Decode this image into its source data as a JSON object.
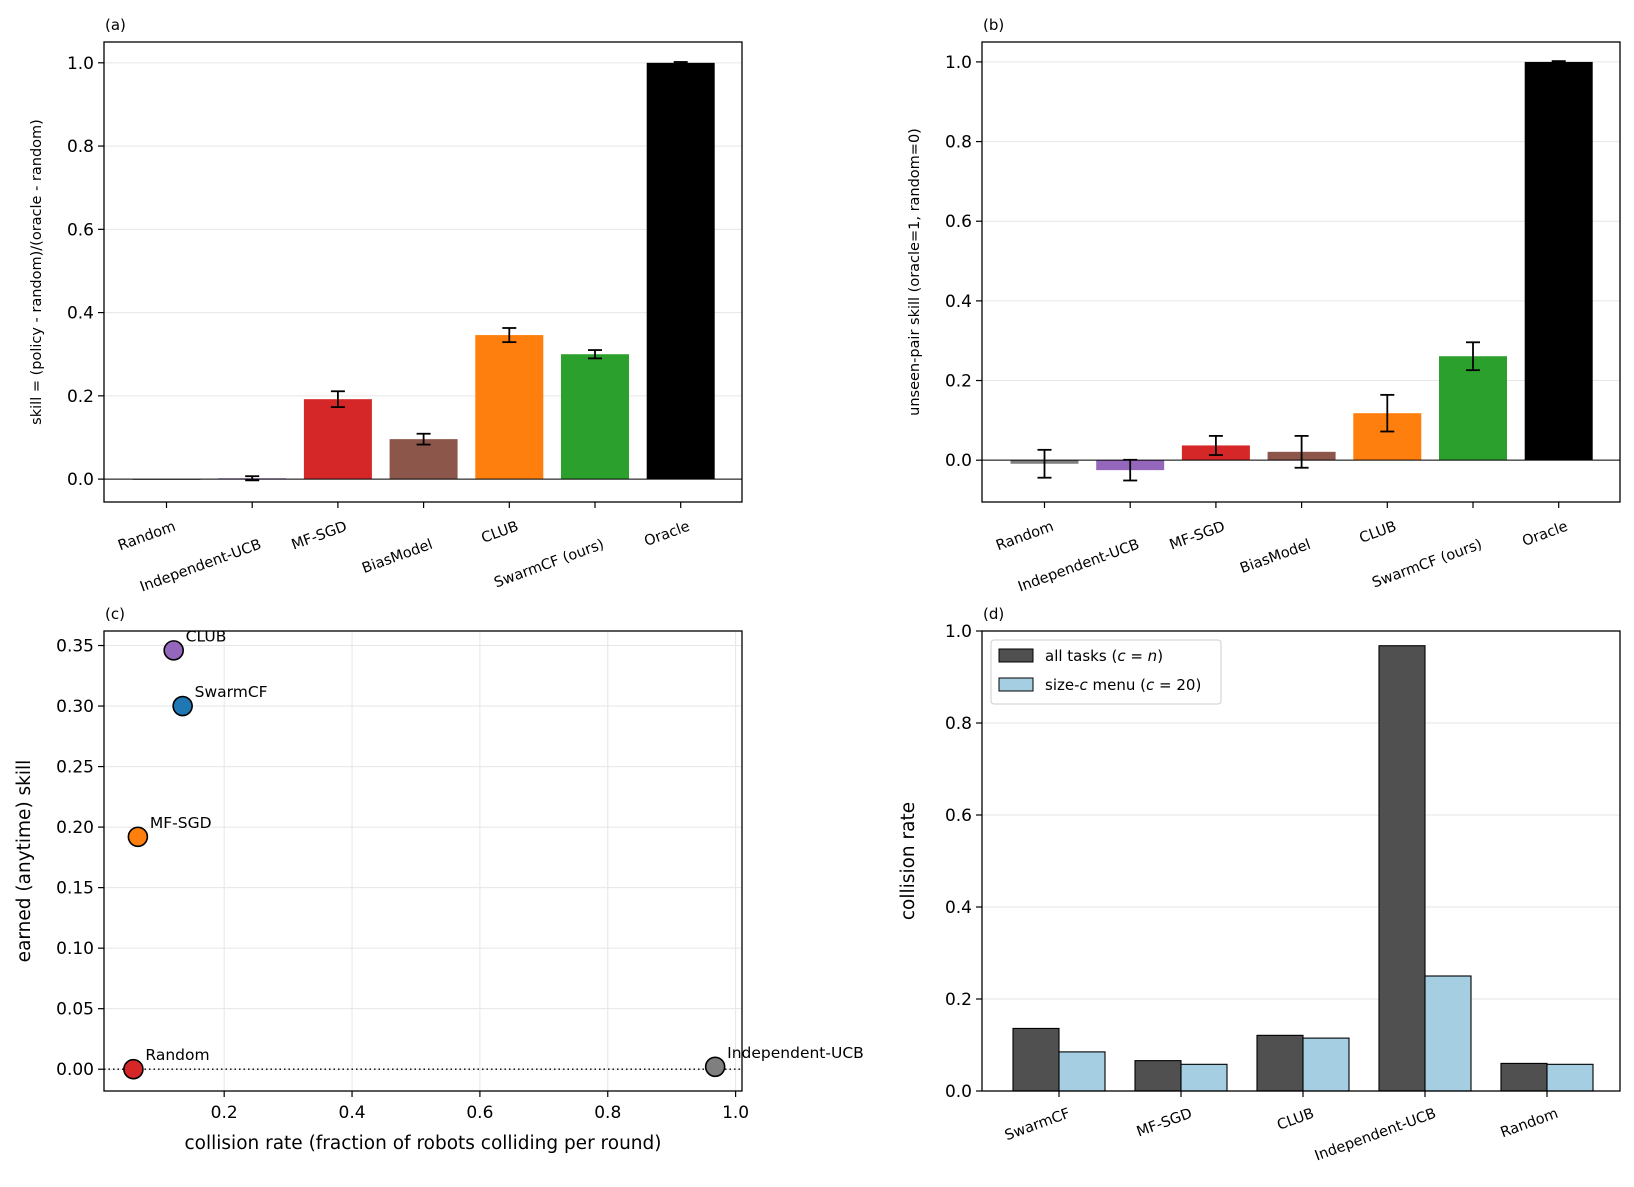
{
  "chart_data": [
    {
      "panel": "(a)",
      "type": "bar",
      "ylabel": "skill = (policy - random)/(oracle - random)",
      "ylim": [
        -0.055,
        1.05
      ],
      "yticks": [
        0.0,
        0.2,
        0.4,
        0.6,
        0.8,
        1.0
      ],
      "ytick_labels": [
        "0.0",
        "0.2",
        "0.4",
        "0.6",
        "0.8",
        "1.0"
      ],
      "grid": "y",
      "zero_line": true,
      "categories": [
        "Random",
        "Independent-UCB",
        "MF-SGD",
        "BiasModel",
        "CLUB",
        "SwarmCF (ours)",
        "Oracle"
      ],
      "values": [
        0.0,
        0.002,
        0.192,
        0.096,
        0.346,
        0.3,
        1.0
      ],
      "errors": [
        0.0,
        0.005,
        0.019,
        0.013,
        0.017,
        0.01,
        0.002
      ],
      "colors": [
        "#7f7f7f",
        "#9467bd",
        "#d62728",
        "#8c564b",
        "#ff7f0e",
        "#2ca02c",
        "#000000"
      ]
    },
    {
      "panel": "(b)",
      "type": "bar",
      "ylabel": "unseen-pair skill (oracle=1, random=0)",
      "ylim": [
        -0.105,
        1.05
      ],
      "yticks": [
        0.0,
        0.2,
        0.4,
        0.6,
        0.8,
        1.0
      ],
      "ytick_labels": [
        "0.0",
        "0.2",
        "0.4",
        "0.6",
        "0.8",
        "1.0"
      ],
      "grid": "y",
      "zero_line": true,
      "categories": [
        "Random",
        "Independent-UCB",
        "MF-SGD",
        "BiasModel",
        "CLUB",
        "SwarmCF (ours)",
        "Oracle"
      ],
      "values": [
        -0.009,
        -0.025,
        0.037,
        0.021,
        0.118,
        0.261,
        1.0
      ],
      "errors": [
        0.035,
        0.026,
        0.024,
        0.04,
        0.046,
        0.035,
        0.002
      ],
      "colors": [
        "#7f7f7f",
        "#9467bd",
        "#d62728",
        "#8c564b",
        "#ff7f0e",
        "#2ca02c",
        "#000000"
      ]
    },
    {
      "panel": "(c)",
      "type": "scatter",
      "xlabel": "collision rate (fraction of robots colliding per round)",
      "ylabel": "earned (anytime) skill",
      "xlim": [
        0.012,
        1.01
      ],
      "ylim": [
        -0.018,
        0.362
      ],
      "xticks": [
        0.2,
        0.4,
        0.6,
        0.8,
        1.0
      ],
      "xtick_labels": [
        "0.2",
        "0.4",
        "0.6",
        "0.8",
        "1.0"
      ],
      "yticks": [
        0.0,
        0.05,
        0.1,
        0.15,
        0.2,
        0.25,
        0.3,
        0.35
      ],
      "ytick_labels": [
        "0.00",
        "0.05",
        "0.10",
        "0.15",
        "0.20",
        "0.25",
        "0.30",
        "0.35"
      ],
      "grid": "both",
      "zero_line": "dotted",
      "points": [
        {
          "label": "CLUB",
          "x": 0.121,
          "y": 0.346,
          "color": "#9467bd"
        },
        {
          "label": "SwarmCF",
          "x": 0.135,
          "y": 0.3,
          "color": "#1f77b4"
        },
        {
          "label": "MF-SGD",
          "x": 0.065,
          "y": 0.192,
          "color": "#ff7f0e"
        },
        {
          "label": "Random",
          "x": 0.058,
          "y": 0.0,
          "color": "#d62728"
        },
        {
          "label": "Independent-UCB",
          "x": 0.968,
          "y": 0.002,
          "color": "#7f7f7f"
        }
      ]
    },
    {
      "panel": "(d)",
      "type": "bar",
      "ylabel": "collision rate",
      "ylim": [
        0.0,
        1.0
      ],
      "yticks": [
        0.0,
        0.2,
        0.4,
        0.6,
        0.8,
        1.0
      ],
      "ytick_labels": [
        "0.0",
        "0.2",
        "0.4",
        "0.6",
        "0.8",
        "1.0"
      ],
      "grid": "y",
      "legend_position": "top-left",
      "categories": [
        "SwarmCF",
        "MF-SGD",
        "CLUB",
        "Independent-UCB",
        "Random"
      ],
      "series": [
        {
          "name_parts": [
            "all tasks (",
            "c",
            " = ",
            "n",
            ")"
          ],
          "values": [
            0.136,
            0.066,
            0.121,
            0.968,
            0.06
          ],
          "color": "#505050"
        },
        {
          "name_parts": [
            "size-",
            "c",
            " menu (",
            "c",
            " = 20)"
          ],
          "values": [
            0.085,
            0.058,
            0.115,
            0.25,
            0.058
          ],
          "color": "#a6cee3"
        }
      ]
    }
  ]
}
